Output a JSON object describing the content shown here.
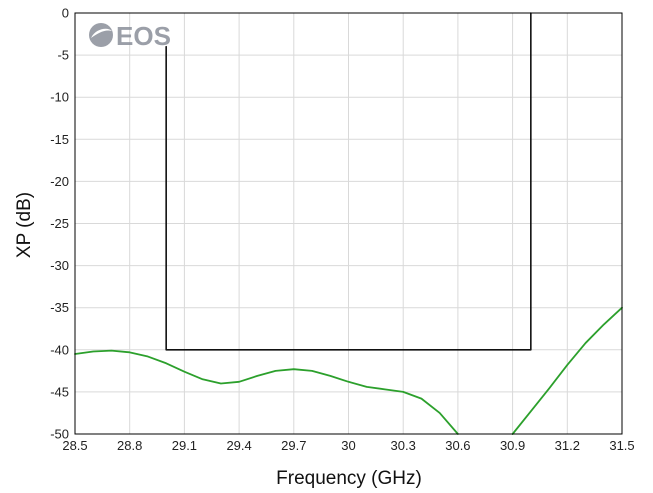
{
  "chart_data": {
    "type": "line",
    "title": "",
    "xlabel": "Frequency (GHz)",
    "ylabel": "XP (dB)",
    "xlim": [
      28.5,
      31.5
    ],
    "ylim": [
      -50,
      0
    ],
    "x_ticks": [
      "28.5",
      "28.8",
      "29.1",
      "29.4",
      "29.7",
      "30",
      "30.3",
      "30.6",
      "30.9",
      "31.2",
      "31.5"
    ],
    "y_ticks": [
      "0",
      "-5",
      "-10",
      "-15",
      "-20",
      "-25",
      "-30",
      "-35",
      "-40",
      "-45",
      "-50"
    ],
    "grid": true,
    "legend": "none",
    "logo_text": "EOS",
    "series": [
      {
        "color": "#2ca02c",
        "segments": [
          [
            [
              28.5,
              -40.5
            ],
            [
              28.6,
              -40.2
            ],
            [
              28.7,
              -40.1
            ],
            [
              28.8,
              -40.3
            ],
            [
              28.9,
              -40.8
            ],
            [
              29.0,
              -41.6
            ],
            [
              29.1,
              -42.6
            ],
            [
              29.2,
              -43.5
            ],
            [
              29.3,
              -44.0
            ],
            [
              29.4,
              -43.8
            ],
            [
              29.5,
              -43.1
            ],
            [
              29.6,
              -42.5
            ],
            [
              29.7,
              -42.3
            ],
            [
              29.8,
              -42.5
            ],
            [
              29.9,
              -43.1
            ],
            [
              30.0,
              -43.8
            ],
            [
              30.1,
              -44.4
            ],
            [
              30.2,
              -44.7
            ],
            [
              30.3,
              -45.0
            ],
            [
              30.4,
              -45.8
            ],
            [
              30.5,
              -47.5
            ],
            [
              30.6,
              -50.0
            ]
          ],
          [
            [
              30.9,
              -50.0
            ],
            [
              31.0,
              -47.3
            ],
            [
              31.1,
              -44.6
            ],
            [
              31.2,
              -41.8
            ],
            [
              31.3,
              -39.2
            ],
            [
              31.4,
              -37.0
            ],
            [
              31.5,
              -35.0
            ]
          ]
        ]
      },
      {
        "color": "#111111",
        "segments": [
          [
            [
              29.0,
              -4.0
            ],
            [
              29.0,
              -40.0
            ],
            [
              31.0,
              -40.0
            ],
            [
              31.0,
              0.0
            ]
          ]
        ]
      }
    ]
  }
}
